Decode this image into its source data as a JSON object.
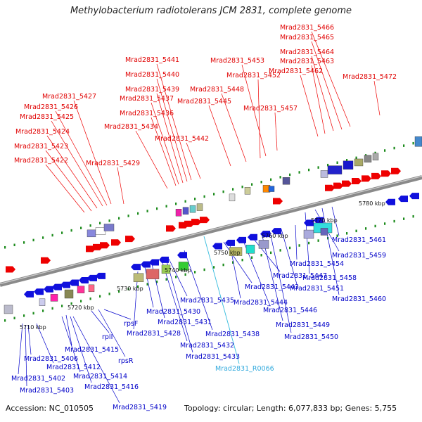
{
  "title": "Methylobacterium radiotolerans JCM 2831, complete genome",
  "accession": "Accession: NC_010505",
  "topology": "Topology: circular; Length: 6,077,833 bp; Genes: 5,755",
  "scale_labels": [
    "5710 kbp",
    "5720 kbp",
    "5730 kbp",
    "5740 kbp",
    "5750 kbp",
    "5760 kbp",
    "5770 kbp",
    "5780 kbp"
  ],
  "colors": {
    "forward_label": "#e00000",
    "reverse_label": "#0000c8",
    "rna_label": "#33aadd",
    "backbone": "#8a8a8a",
    "tick": "#1a8a1a"
  },
  "forward_labels": [
    "Mrad2831_5422",
    "Mrad2831_5423",
    "Mrad2831_5424",
    "Mrad2831_5425",
    "Mrad2831_5426",
    "Mrad2831_5427",
    "Mrad2831_5429",
    "Mrad2831_5434",
    "Mrad2831_5436",
    "Mrad2831_5437",
    "Mrad2831_5439",
    "Mrad2831_5440",
    "Mrad2831_5441",
    "Mrad2831_5442",
    "Mrad2831_5445",
    "Mrad2831_5448",
    "Mrad2831_5452",
    "Mrad2831_5453",
    "Mrad2831_5457",
    "Mrad2831_5462",
    "Mrad2831_5463",
    "Mrad2831_5464",
    "Mrad2831_5465",
    "Mrad2831_5466",
    "Mrad2831_5472"
  ],
  "reverse_labels": [
    "Mrad2831_5402",
    "Mrad2831_5403",
    "Mrad2831_5406",
    "Mrad2831_5412",
    "Mrad2831_5414",
    "Mrad2831_5415",
    "Mrad2831_5416",
    "Mrad2831_5419",
    "rplI",
    "rpsR",
    "rpsF",
    "Mrad2831_5428",
    "Mrad2831_5430",
    "Mrad2831_5431",
    "Mrad2831_5432",
    "Mrad2831_5433",
    "Mrad2831_5435",
    "Mrad2831_5438",
    "Mrad2831_5443",
    "Mrad2831_5444",
    "Mrad2831_5446",
    "Mrad2831_5447",
    "Mrad2831_5449",
    "Mrad2831_5450",
    "Mrad2831_5451",
    "Mrad2831_5454",
    "Mrad2831_5458",
    "Mrad2831_5459",
    "Mrad2831_5460",
    "Mrad2831_5461"
  ],
  "rna_labels": [
    "Mrad2831_R0066"
  ]
}
